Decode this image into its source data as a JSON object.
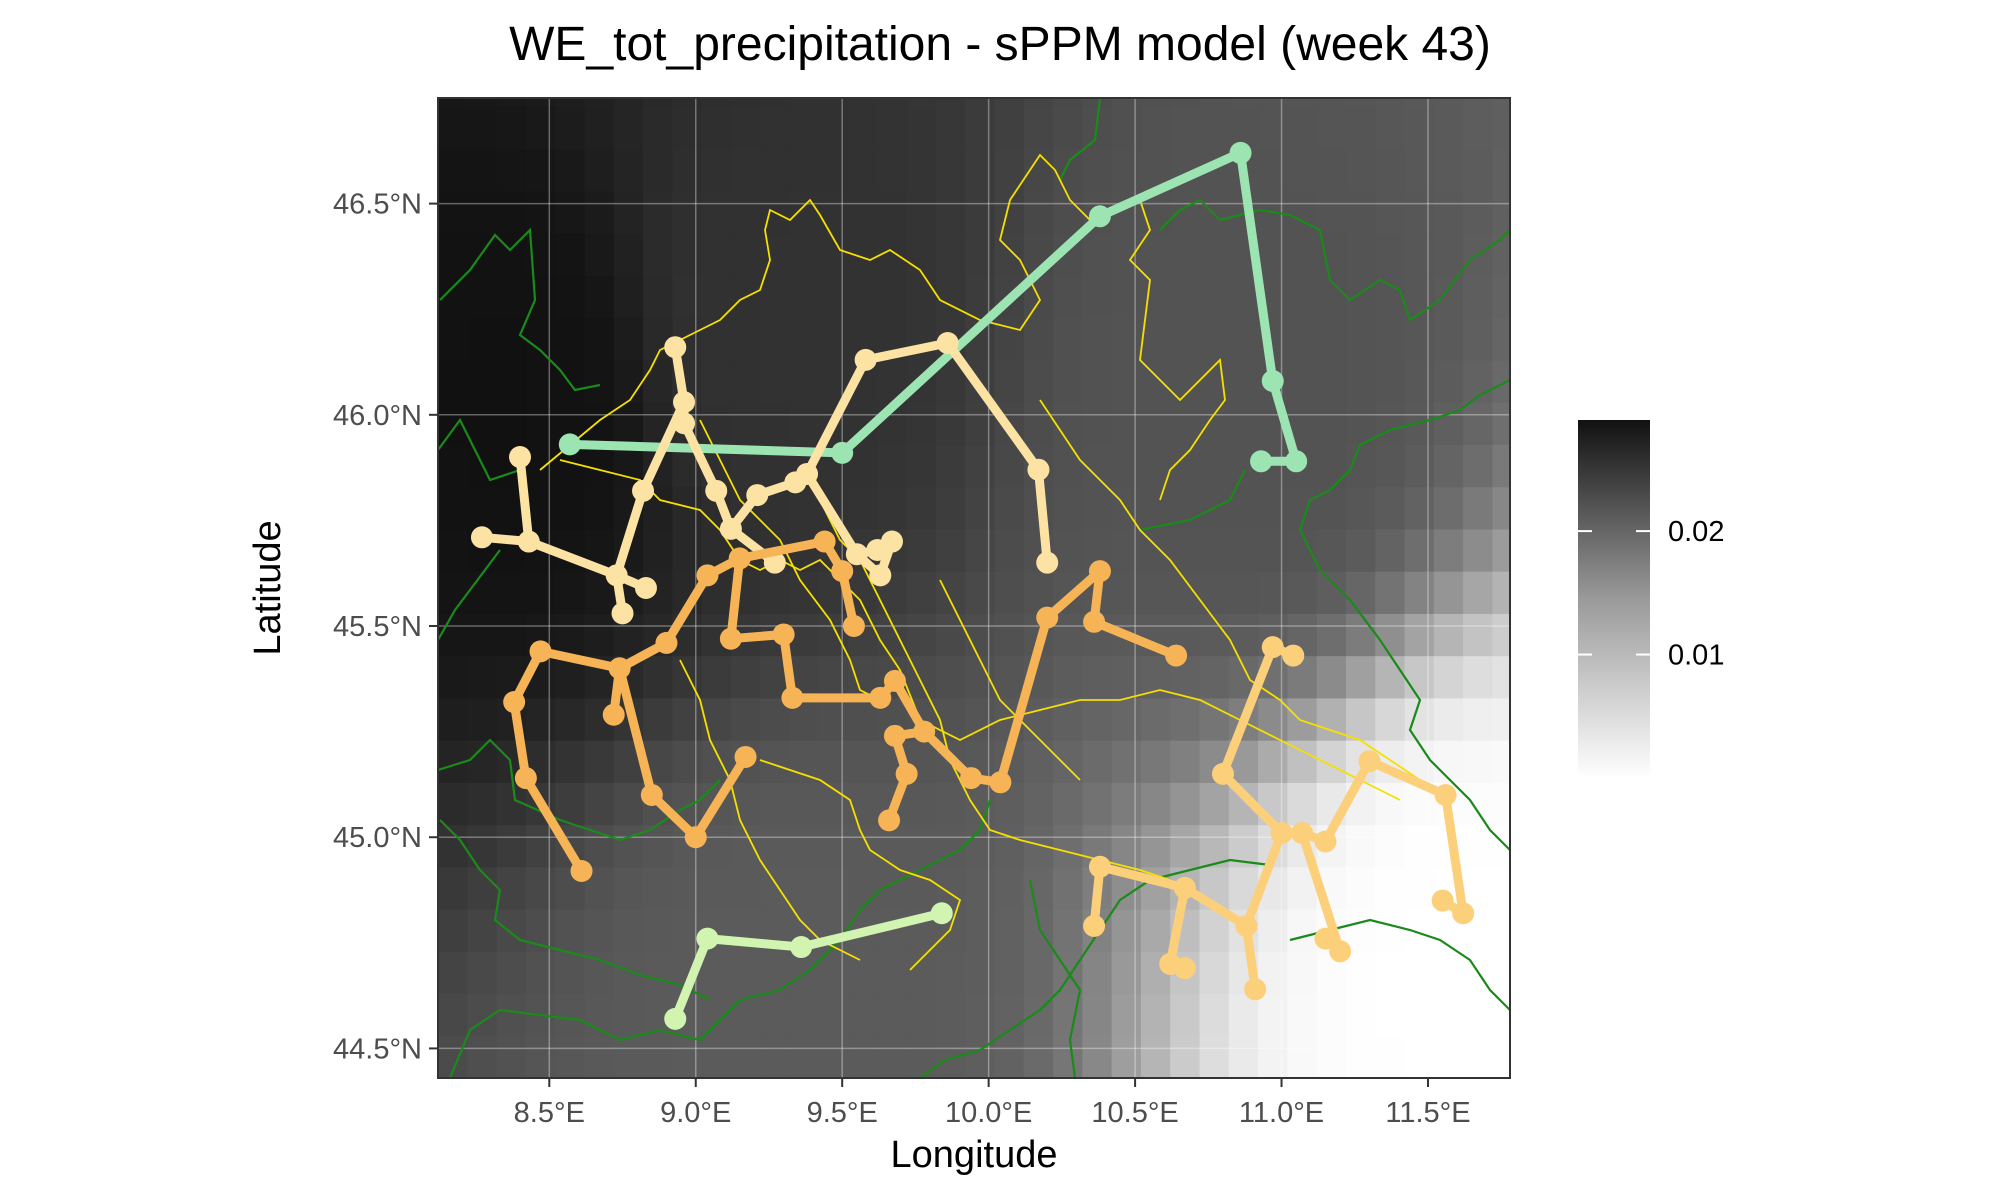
{
  "chart_data": {
    "type": "heatmap",
    "title": "WE_tot_precipitation - sPPM model (week 43)",
    "xlabel": "Longitude",
    "ylabel": "Latitude",
    "xlim": [
      8.12,
      11.78
    ],
    "ylim": [
      44.43,
      46.75
    ],
    "x_ticks": [
      8.5,
      9.0,
      9.5,
      10.0,
      10.5,
      11.0,
      11.5
    ],
    "x_tick_labels": [
      "8.5°E",
      "9.0°E",
      "9.5°E",
      "10.0°E",
      "10.5°E",
      "11.0°E",
      "11.5°E"
    ],
    "y_ticks": [
      44.5,
      45.0,
      45.5,
      46.0,
      46.5
    ],
    "y_tick_labels": [
      "44.5°N",
      "45.0°N",
      "45.5°N",
      "46.0°N",
      "46.5°N"
    ],
    "grid": true,
    "legend": {
      "position": "right",
      "type": "colorbar",
      "range": [
        0.0,
        0.029
      ],
      "ticks": [
        0.01,
        0.02
      ],
      "tick_labels": [
        "0.01",
        "0.02"
      ],
      "low_color": "#ffffff",
      "high_color": "#111111"
    },
    "colors": {
      "panel_border": "#333333",
      "border_lines_green": "#1a8a1a",
      "border_lines_yellow": "#f5e000",
      "grid": "#ffffff"
    },
    "field": {
      "description_values": "precipitation intensity in data units; estimated as a smooth gradient",
      "centers": [
        {
          "x": 8.45,
          "y": 46.05,
          "value": 0.029
        },
        {
          "x": 9.2,
          "y": 46.2,
          "value": 0.025
        },
        {
          "x": 10.9,
          "y": 46.0,
          "value": 0.021
        },
        {
          "x": 9.3,
          "y": 44.6,
          "value": 0.02
        },
        {
          "x": 11.6,
          "y": 44.7,
          "value": 0.0
        }
      ]
    },
    "series": [
      {
        "color": "#9de4b3",
        "points": [
          [
            8.57,
            45.93
          ],
          [
            9.5,
            45.91
          ],
          [
            10.38,
            46.47
          ],
          [
            10.86,
            46.62
          ],
          [
            10.97,
            46.08
          ],
          [
            11.05,
            45.89
          ],
          [
            10.93,
            45.89
          ]
        ],
        "segments": [
          [
            0,
            1
          ],
          [
            1,
            2
          ],
          [
            2,
            3
          ],
          [
            3,
            4
          ],
          [
            4,
            5
          ],
          [
            5,
            6
          ]
        ]
      },
      {
        "color": "#fce3a3",
        "points": [
          [
            8.27,
            45.71
          ],
          [
            8.4,
            45.9
          ],
          [
            8.43,
            45.7
          ],
          [
            8.73,
            45.62
          ],
          [
            8.83,
            45.59
          ],
          [
            8.75,
            45.53
          ],
          [
            8.82,
            45.82
          ],
          [
            8.93,
            46.16
          ],
          [
            8.96,
            46.03
          ],
          [
            8.96,
            45.98
          ],
          [
            9.07,
            45.82
          ],
          [
            9.12,
            45.73
          ],
          [
            9.21,
            45.81
          ],
          [
            9.34,
            45.84
          ],
          [
            9.38,
            45.86
          ],
          [
            9.27,
            45.65
          ],
          [
            9.55,
            45.67
          ],
          [
            9.63,
            45.62
          ],
          [
            9.67,
            45.7
          ],
          [
            9.62,
            45.68
          ],
          [
            9.58,
            46.13
          ],
          [
            9.86,
            46.17
          ],
          [
            10.17,
            45.87
          ],
          [
            10.2,
            45.65
          ]
        ],
        "segments": [
          [
            0,
            2
          ],
          [
            1,
            2
          ],
          [
            2,
            3
          ],
          [
            3,
            4
          ],
          [
            3,
            5
          ],
          [
            3,
            6
          ],
          [
            6,
            8
          ],
          [
            7,
            8
          ],
          [
            8,
            9
          ],
          [
            9,
            10
          ],
          [
            10,
            11
          ],
          [
            11,
            12
          ],
          [
            12,
            13
          ],
          [
            13,
            14
          ],
          [
            11,
            15
          ],
          [
            14,
            16
          ],
          [
            16,
            17
          ],
          [
            17,
            18
          ],
          [
            16,
            19
          ],
          [
            14,
            20
          ],
          [
            20,
            21
          ],
          [
            21,
            22
          ],
          [
            22,
            23
          ]
        ]
      },
      {
        "color": "#f6b456",
        "points": [
          [
            8.61,
            44.92
          ],
          [
            8.42,
            45.14
          ],
          [
            8.38,
            45.32
          ],
          [
            8.47,
            45.44
          ],
          [
            8.74,
            45.4
          ],
          [
            8.72,
            45.29
          ],
          [
            8.9,
            45.46
          ],
          [
            9.04,
            45.62
          ],
          [
            9.15,
            45.66
          ],
          [
            9.12,
            45.47
          ],
          [
            9.3,
            45.48
          ],
          [
            9.33,
            45.33
          ],
          [
            9.44,
            45.7
          ],
          [
            9.5,
            45.63
          ],
          [
            9.54,
            45.5
          ],
          [
            9.63,
            45.33
          ],
          [
            9.68,
            45.37
          ],
          [
            9.78,
            45.25
          ],
          [
            9.68,
            45.24
          ],
          [
            9.72,
            45.15
          ],
          [
            9.66,
            45.04
          ],
          [
            9.94,
            45.14
          ],
          [
            10.04,
            45.13
          ],
          [
            10.2,
            45.52
          ],
          [
            10.38,
            45.63
          ],
          [
            10.36,
            45.51
          ],
          [
            10.64,
            45.43
          ],
          [
            8.85,
            45.1
          ],
          [
            9.0,
            45.0
          ],
          [
            9.17,
            45.19
          ]
        ],
        "segments": [
          [
            0,
            1
          ],
          [
            1,
            2
          ],
          [
            2,
            3
          ],
          [
            3,
            4
          ],
          [
            4,
            5
          ],
          [
            4,
            27
          ],
          [
            27,
            28
          ],
          [
            28,
            29
          ],
          [
            4,
            6
          ],
          [
            6,
            7
          ],
          [
            7,
            8
          ],
          [
            8,
            9
          ],
          [
            9,
            10
          ],
          [
            10,
            11
          ],
          [
            8,
            12
          ],
          [
            12,
            13
          ],
          [
            13,
            14
          ],
          [
            11,
            15
          ],
          [
            15,
            16
          ],
          [
            16,
            17
          ],
          [
            17,
            18
          ],
          [
            18,
            19
          ],
          [
            19,
            20
          ],
          [
            17,
            21
          ],
          [
            21,
            22
          ],
          [
            22,
            23
          ],
          [
            23,
            24
          ],
          [
            24,
            25
          ],
          [
            25,
            26
          ]
        ]
      },
      {
        "color": "#fcd07a",
        "points": [
          [
            10.8,
            45.15
          ],
          [
            10.97,
            45.45
          ],
          [
            11.04,
            45.43
          ],
          [
            11.0,
            45.01
          ],
          [
            11.07,
            45.01
          ],
          [
            11.15,
            44.99
          ],
          [
            11.3,
            45.18
          ],
          [
            11.56,
            45.1
          ],
          [
            11.62,
            44.82
          ],
          [
            11.55,
            44.85
          ],
          [
            11.2,
            44.73
          ],
          [
            11.15,
            44.76
          ],
          [
            10.88,
            44.79
          ],
          [
            10.91,
            44.64
          ],
          [
            10.67,
            44.88
          ],
          [
            10.62,
            44.7
          ],
          [
            10.67,
            44.69
          ],
          [
            10.38,
            44.93
          ],
          [
            10.36,
            44.79
          ]
        ],
        "segments": [
          [
            0,
            1
          ],
          [
            1,
            2
          ],
          [
            0,
            3
          ],
          [
            3,
            4
          ],
          [
            4,
            5
          ],
          [
            5,
            6
          ],
          [
            6,
            7
          ],
          [
            7,
            8
          ],
          [
            8,
            9
          ],
          [
            4,
            10
          ],
          [
            10,
            11
          ],
          [
            3,
            12
          ],
          [
            12,
            13
          ],
          [
            12,
            14
          ],
          [
            14,
            15
          ],
          [
            15,
            16
          ],
          [
            14,
            17
          ],
          [
            17,
            18
          ]
        ]
      },
      {
        "color": "#d2f4b1",
        "points": [
          [
            8.93,
            44.57
          ],
          [
            9.04,
            44.76
          ],
          [
            9.36,
            44.74
          ],
          [
            9.84,
            44.82
          ]
        ],
        "segments": [
          [
            0,
            1
          ],
          [
            1,
            2
          ],
          [
            2,
            3
          ]
        ]
      }
    ]
  }
}
